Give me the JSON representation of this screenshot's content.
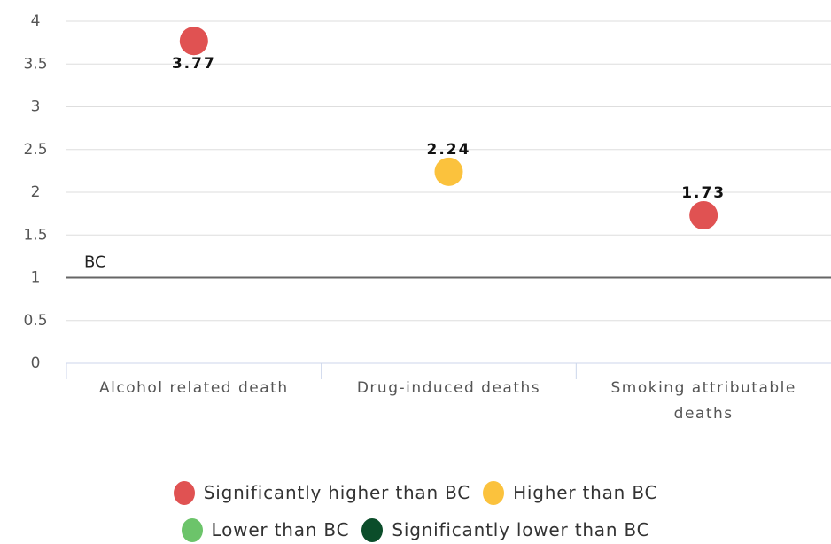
{
  "chart_data": {
    "type": "scatter",
    "categories": [
      "Alcohol related death",
      "Drug-induced deaths",
      "Smoking attributable deaths"
    ],
    "values": [
      3.77,
      2.24,
      1.73
    ],
    "colors": [
      "#e05252",
      "#fbc23d",
      "#e05252"
    ],
    "ylim": [
      0,
      4
    ],
    "yticks": [
      0,
      0.5,
      1,
      1.5,
      2,
      2.5,
      3,
      3.5,
      4
    ],
    "grid": true,
    "reference_line": {
      "value": 1,
      "label": "BC"
    },
    "legend": [
      {
        "name": "Significantly higher than BC",
        "color": "#e05252"
      },
      {
        "name": "Higher than BC",
        "color": "#fbc23d"
      },
      {
        "name": "Lower than BC",
        "color": "#6cc46a"
      },
      {
        "name": "Significantly lower than BC",
        "color": "#0b4d2a"
      }
    ]
  }
}
